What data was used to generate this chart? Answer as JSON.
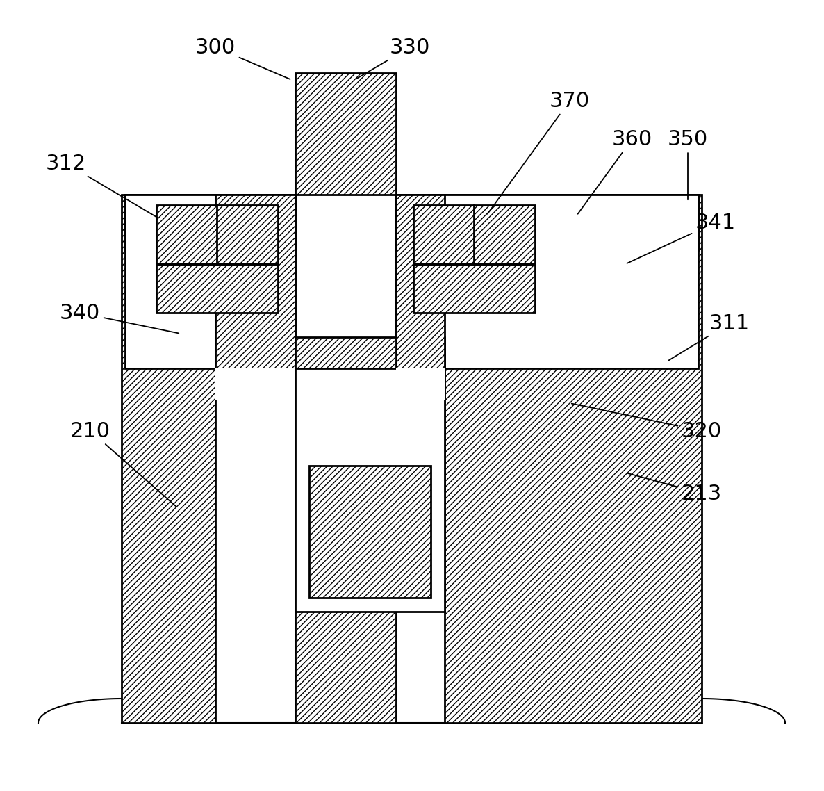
{
  "background_color": "#ffffff",
  "line_color": "#000000",
  "fig_width": 11.86,
  "fig_height": 11.38,
  "hatch": "////",
  "lw": 2.0
}
